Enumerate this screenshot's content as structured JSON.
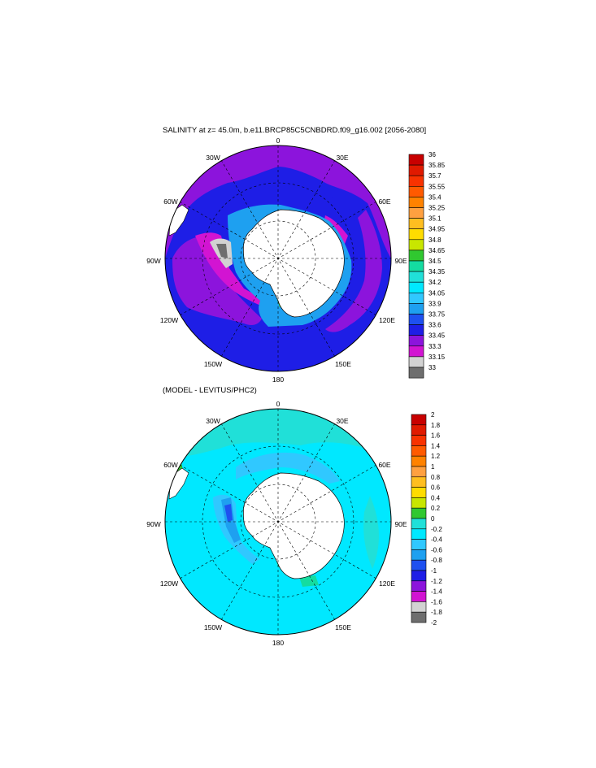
{
  "top_panel": {
    "title": "SALINITY at z=  45.0m, b.e11.BRCP85C5CNBDRD.f09_g16.002 [2056-2080]",
    "lon_labels": [
      "0",
      "30E",
      "60E",
      "90E",
      "120E",
      "150E",
      "180",
      "150W",
      "120W",
      "90W",
      "60W",
      "30W"
    ],
    "colorbar": {
      "labels": [
        "36",
        "35.85",
        "35.7",
        "35.55",
        "35.4",
        "35.25",
        "35.1",
        "34.95",
        "34.8",
        "34.65",
        "34.5",
        "34.35",
        "34.2",
        "34.05",
        "33.9",
        "33.75",
        "33.6",
        "33.45",
        "33.3",
        "33.15",
        "33"
      ],
      "colors": [
        "#c80000",
        "#e01a00",
        "#f83200",
        "#ff5a00",
        "#ff8200",
        "#ffa040",
        "#ffbe20",
        "#ffdc00",
        "#c8e600",
        "#30c830",
        "#14dca0",
        "#20e0d8",
        "#00e8ff",
        "#30c8ff",
        "#1ea0f0",
        "#1e50f0",
        "#1e1ee6",
        "#8c14dc",
        "#d214d2",
        "#d2d2d2",
        "#6e6e6e"
      ]
    }
  },
  "bottom_panel": {
    "title": "(MODEL - LEVITUS/PHC2)",
    "lon_labels": [
      "0",
      "30E",
      "60E",
      "90E",
      "120E",
      "150E",
      "180",
      "150W",
      "120W",
      "90W",
      "60W",
      "30W"
    ],
    "colorbar": {
      "labels": [
        "2",
        "1.8",
        "1.6",
        "1.4",
        "1.2",
        "1",
        "0.8",
        "0.6",
        "0.4",
        "0.2",
        "0",
        "-0.2",
        "-0.4",
        "-0.6",
        "-0.8",
        "-1",
        "-1.2",
        "-1.4",
        "-1.6",
        "-1.8",
        "-2"
      ],
      "colors": [
        "#c80000",
        "#e01a00",
        "#f83200",
        "#ff5a00",
        "#ff8200",
        "#ffa040",
        "#ffbe20",
        "#ffdc00",
        "#c8e600",
        "#30c830",
        "#20e0d8",
        "#00e8ff",
        "#30c8ff",
        "#1ea0f0",
        "#1e50f0",
        "#1e1ee6",
        "#8c14dc",
        "#d214d2",
        "#d2d2d2",
        "#6e6e6e"
      ]
    }
  }
}
